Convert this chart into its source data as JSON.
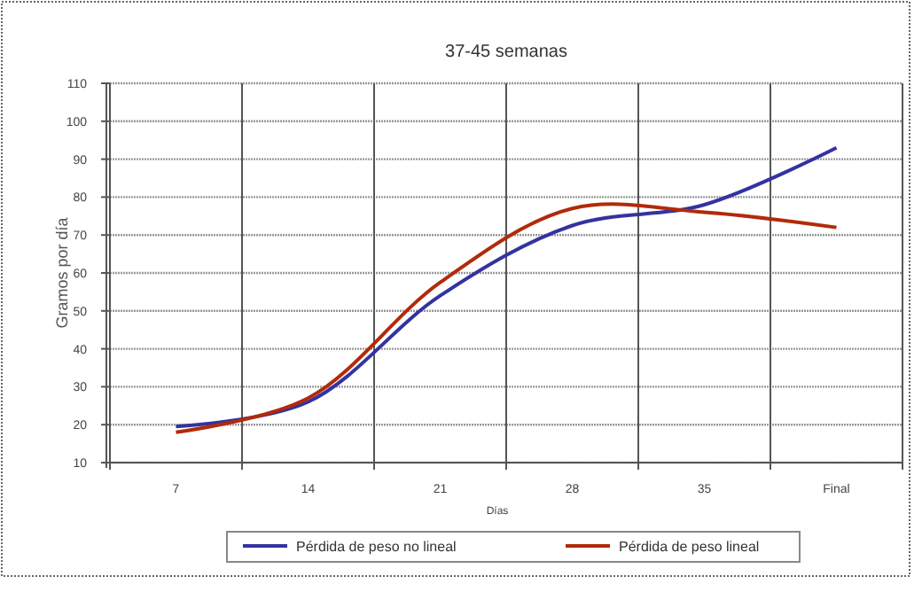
{
  "chart_data": {
    "type": "line",
    "title": "37-45 semanas",
    "xlabel": "Días",
    "ylabel": "Gramos por día",
    "categories": [
      "7",
      "14",
      "21",
      "28",
      "35",
      "Final"
    ],
    "series": [
      {
        "name": "Pérdida de peso no lineal",
        "color": "#3333a0",
        "values": [
          19.5,
          26,
          54,
          72.5,
          78,
          93
        ]
      },
      {
        "name": "Pérdida de peso lineal",
        "color": "#b22a0a",
        "values": [
          18,
          27,
          57.5,
          77,
          76,
          72
        ]
      }
    ],
    "ylim": [
      10,
      110
    ],
    "yticks": [
      10,
      20,
      30,
      40,
      50,
      60,
      70,
      80,
      90,
      100,
      110
    ],
    "grid": true,
    "legend": "bottom",
    "marker": "none",
    "line_style": "solid"
  }
}
